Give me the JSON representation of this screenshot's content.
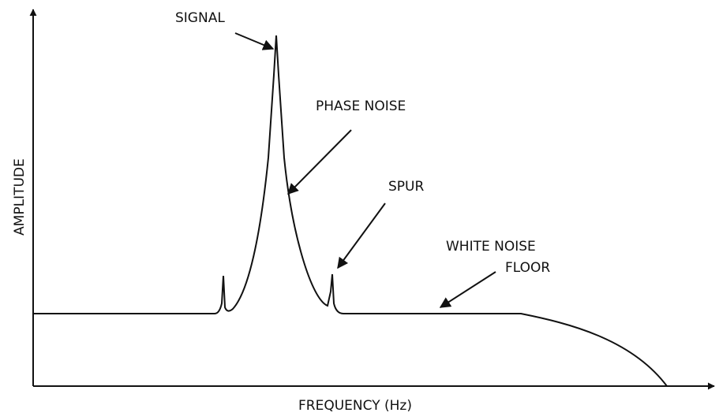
{
  "title_axis_y": "AMPLITUDE",
  "title_axis_x": "FREQUENCY (Hz)",
  "labels": {
    "signal": "SIGNAL",
    "phase_noise": "PHASE NOISE",
    "spur": "SPUR",
    "white_noise_floor": [
      "WHITE NOISE",
      "FLOOR"
    ]
  }
}
